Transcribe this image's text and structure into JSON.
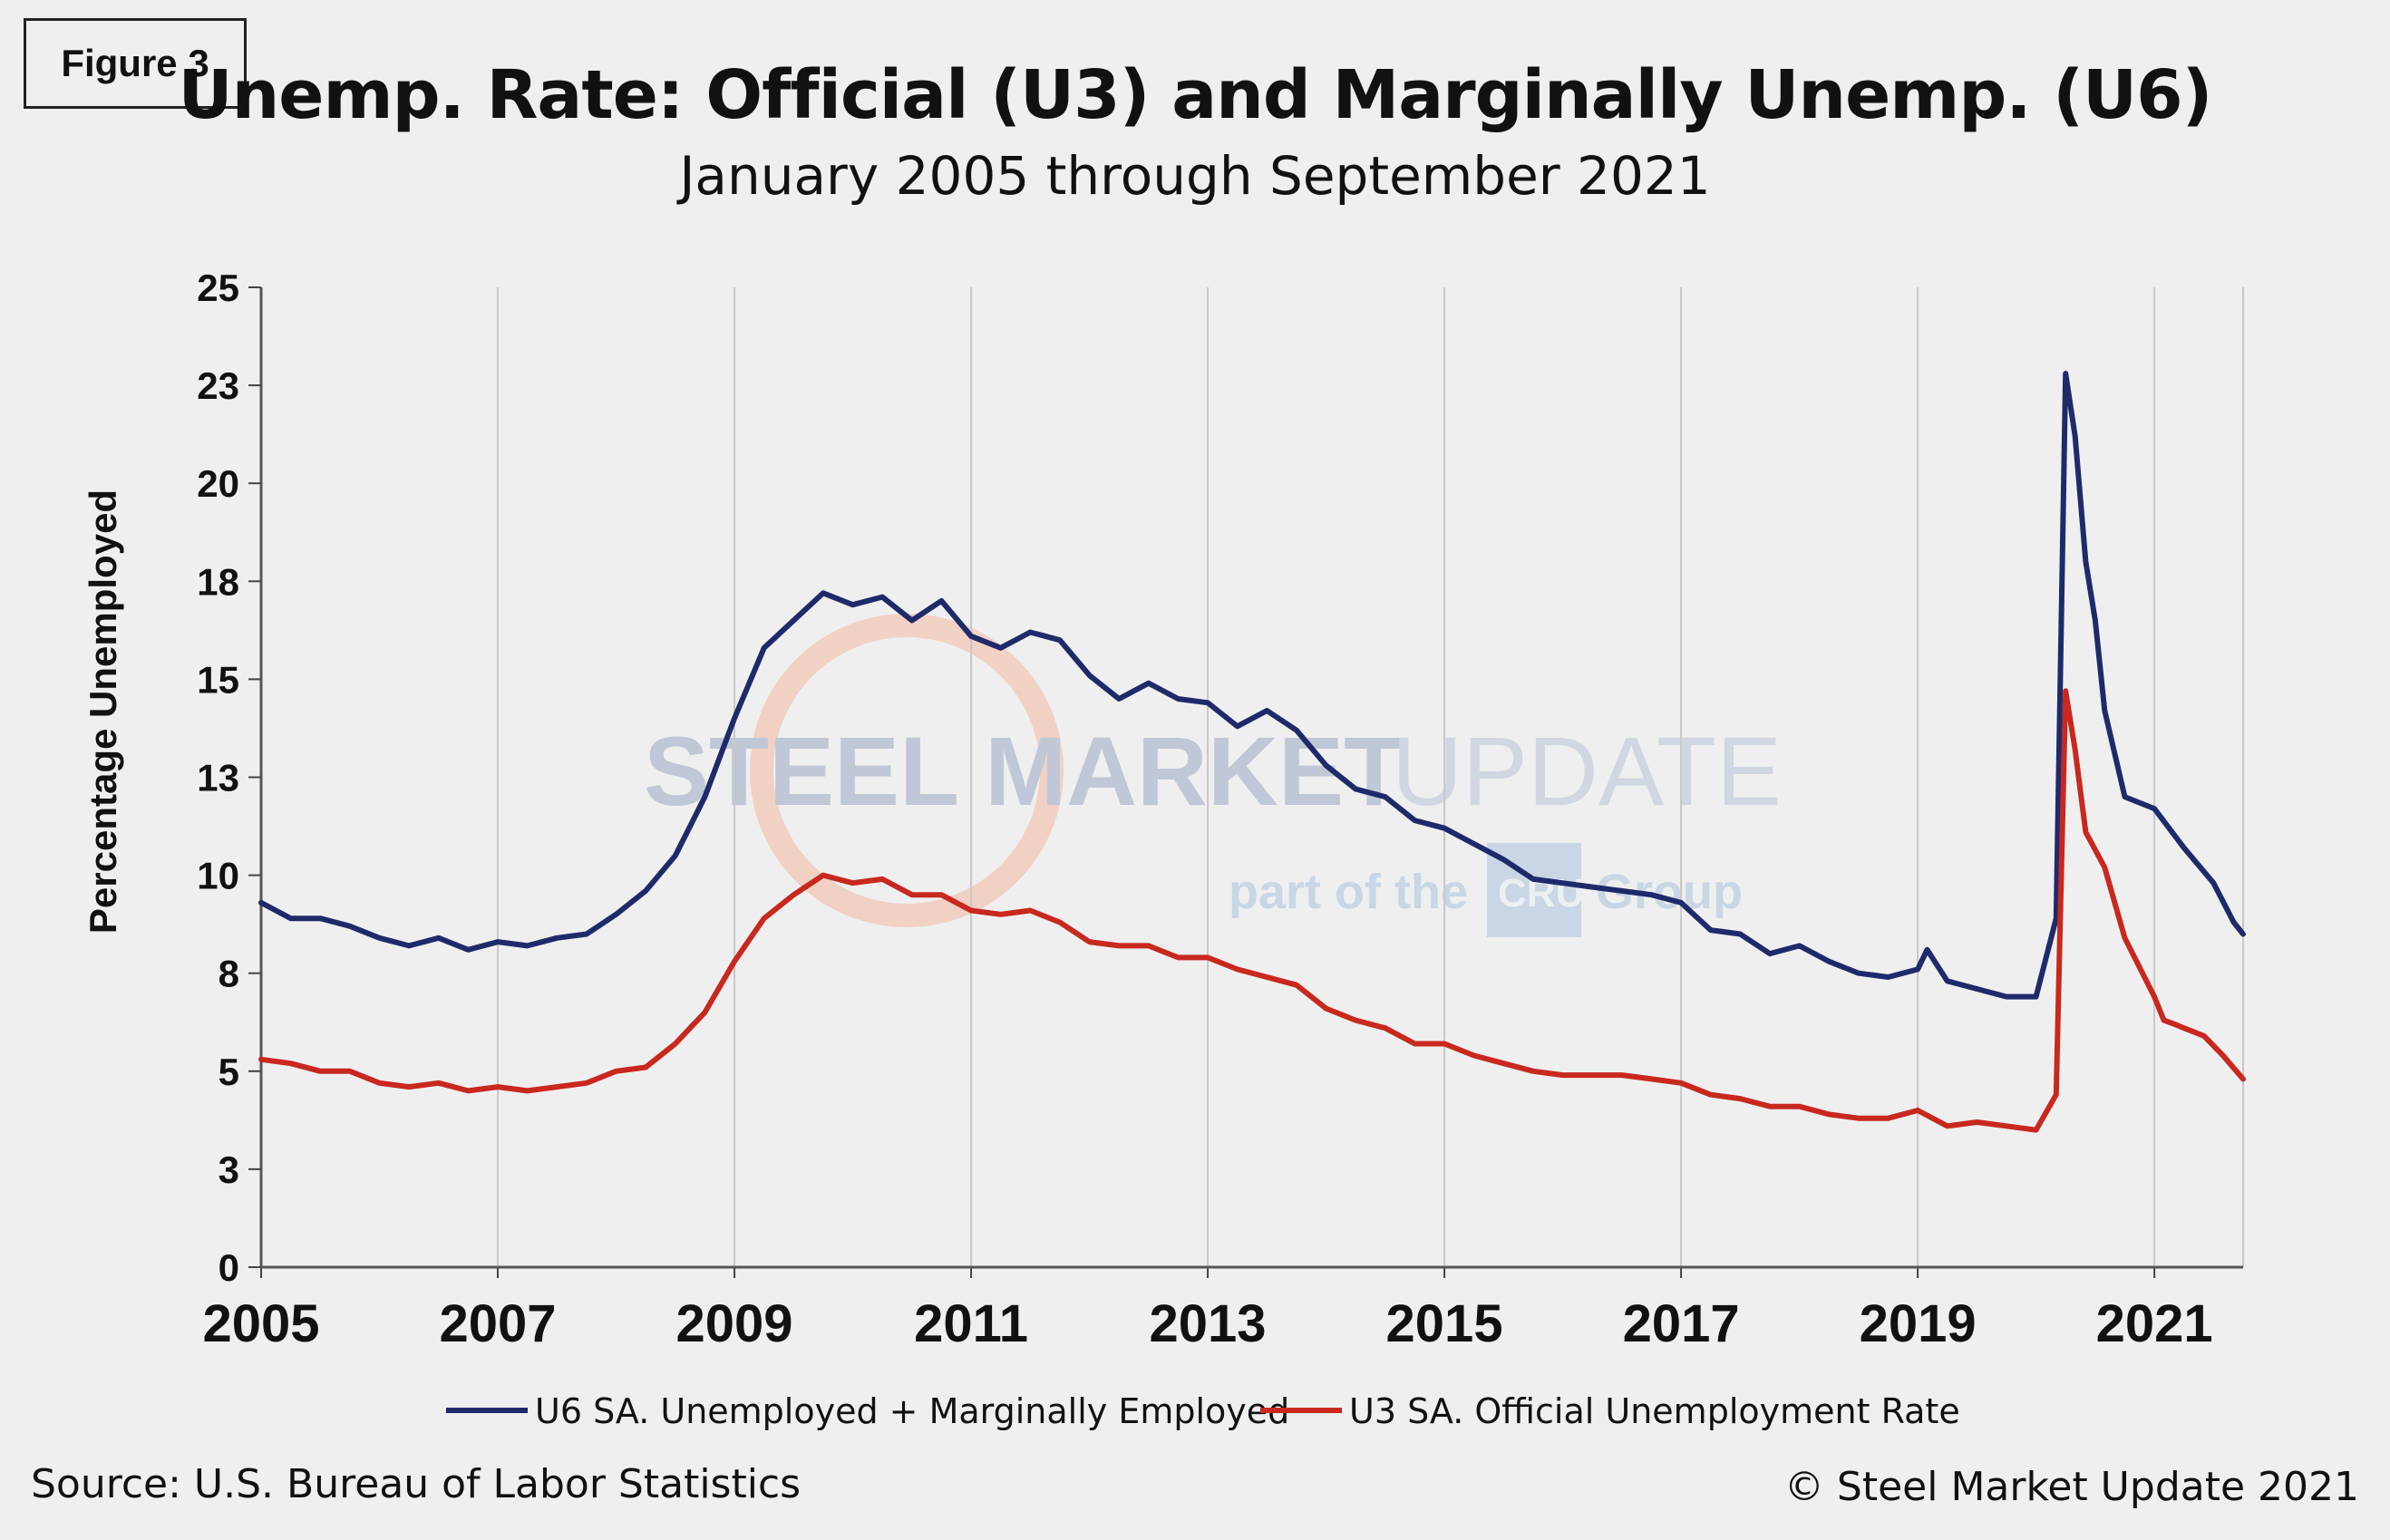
{
  "figure_label": "Figure 3",
  "title": "Unemp. Rate: Official (U3) and Marginally Unemp. (U6)",
  "subtitle": "January 2005 through September 2021",
  "source": "Source: U.S. Bureau  of Labor Statistics",
  "copyright": "© Steel Market Update 2021",
  "watermark": {
    "text_dark": "STEEL MARKET",
    "text_light": "UPDATE",
    "sub_text_left": "part of the",
    "sub_logo": "CRU",
    "sub_text_right": "Group"
  },
  "colors": {
    "u6": "#1f2a6b",
    "u3": "#c8281e",
    "grid": "#c8c8c8",
    "background": "#efefef"
  },
  "chart_data": {
    "type": "line",
    "title": "Unemp. Rate: Official (U3) and Marginally Unemp. (U6)",
    "subtitle": "January 2005 through September 2021",
    "xlabel": "",
    "ylabel": "Percentage Unemployed",
    "xlim": [
      2005.0,
      2021.75
    ],
    "ylim": [
      0,
      25
    ],
    "x_ticks": [
      "2005",
      "2007",
      "2009",
      "2011",
      "2013",
      "2015",
      "2017",
      "2019",
      "2021"
    ],
    "y_ticks": [
      "0",
      "3",
      "5",
      "8",
      "10",
      "13",
      "15",
      "18",
      "20",
      "23",
      "25"
    ],
    "grid": "vertical gridlines only",
    "legend_position": "bottom",
    "series": [
      {
        "name": "U6 SA. Unemployed + Marginally Employed",
        "color": "#1f2a6b",
        "points": [
          [
            2005.0,
            9.3
          ],
          [
            2005.25,
            8.9
          ],
          [
            2005.5,
            8.9
          ],
          [
            2005.75,
            8.7
          ],
          [
            2006.0,
            8.4
          ],
          [
            2006.25,
            8.2
          ],
          [
            2006.5,
            8.4
          ],
          [
            2006.75,
            8.1
          ],
          [
            2007.0,
            8.3
          ],
          [
            2007.25,
            8.2
          ],
          [
            2007.5,
            8.4
          ],
          [
            2007.75,
            8.5
          ],
          [
            2008.0,
            9.0
          ],
          [
            2008.25,
            9.6
          ],
          [
            2008.5,
            10.5
          ],
          [
            2008.75,
            12.0
          ],
          [
            2009.0,
            14.0
          ],
          [
            2009.25,
            15.8
          ],
          [
            2009.5,
            16.5
          ],
          [
            2009.75,
            17.2
          ],
          [
            2010.0,
            16.9
          ],
          [
            2010.25,
            17.1
          ],
          [
            2010.5,
            16.5
          ],
          [
            2010.75,
            17.0
          ],
          [
            2011.0,
            16.1
          ],
          [
            2011.25,
            15.8
          ],
          [
            2011.5,
            16.2
          ],
          [
            2011.75,
            16.0
          ],
          [
            2012.0,
            15.1
          ],
          [
            2012.25,
            14.5
          ],
          [
            2012.5,
            14.9
          ],
          [
            2012.75,
            14.5
          ],
          [
            2013.0,
            14.4
          ],
          [
            2013.25,
            13.8
          ],
          [
            2013.5,
            14.2
          ],
          [
            2013.75,
            13.7
          ],
          [
            2014.0,
            12.8
          ],
          [
            2014.25,
            12.2
          ],
          [
            2014.5,
            12.0
          ],
          [
            2014.75,
            11.4
          ],
          [
            2015.0,
            11.2
          ],
          [
            2015.25,
            10.8
          ],
          [
            2015.5,
            10.4
          ],
          [
            2015.75,
            9.9
          ],
          [
            2016.0,
            9.8
          ],
          [
            2016.25,
            9.7
          ],
          [
            2016.5,
            9.6
          ],
          [
            2016.75,
            9.5
          ],
          [
            2017.0,
            9.3
          ],
          [
            2017.25,
            8.6
          ],
          [
            2017.5,
            8.5
          ],
          [
            2017.75,
            8.0
          ],
          [
            2018.0,
            8.2
          ],
          [
            2018.25,
            7.8
          ],
          [
            2018.5,
            7.5
          ],
          [
            2018.75,
            7.4
          ],
          [
            2019.0,
            7.6
          ],
          [
            2019.08,
            8.1
          ],
          [
            2019.25,
            7.3
          ],
          [
            2019.5,
            7.1
          ],
          [
            2019.75,
            6.9
          ],
          [
            2020.0,
            6.9
          ],
          [
            2020.17,
            8.9
          ],
          [
            2020.25,
            22.8
          ],
          [
            2020.33,
            21.2
          ],
          [
            2020.42,
            18.0
          ],
          [
            2020.5,
            16.5
          ],
          [
            2020.58,
            14.2
          ],
          [
            2020.75,
            12.0
          ],
          [
            2021.0,
            11.7
          ],
          [
            2021.25,
            10.7
          ],
          [
            2021.5,
            9.8
          ],
          [
            2021.67,
            8.8
          ],
          [
            2021.75,
            8.5
          ]
        ]
      },
      {
        "name": "U3 SA. Official Unemployment Rate",
        "color": "#c8281e",
        "points": [
          [
            2005.0,
            5.3
          ],
          [
            2005.25,
            5.2
          ],
          [
            2005.5,
            5.0
          ],
          [
            2005.75,
            5.0
          ],
          [
            2006.0,
            4.7
          ],
          [
            2006.25,
            4.6
          ],
          [
            2006.5,
            4.7
          ],
          [
            2006.75,
            4.5
          ],
          [
            2007.0,
            4.6
          ],
          [
            2007.25,
            4.5
          ],
          [
            2007.5,
            4.6
          ],
          [
            2007.75,
            4.7
          ],
          [
            2008.0,
            5.0
          ],
          [
            2008.25,
            5.1
          ],
          [
            2008.5,
            5.7
          ],
          [
            2008.75,
            6.5
          ],
          [
            2009.0,
            7.8
          ],
          [
            2009.25,
            8.9
          ],
          [
            2009.5,
            9.5
          ],
          [
            2009.75,
            10.0
          ],
          [
            2010.0,
            9.8
          ],
          [
            2010.25,
            9.9
          ],
          [
            2010.5,
            9.5
          ],
          [
            2010.75,
            9.5
          ],
          [
            2011.0,
            9.1
          ],
          [
            2011.25,
            9.0
          ],
          [
            2011.5,
            9.1
          ],
          [
            2011.75,
            8.8
          ],
          [
            2012.0,
            8.3
          ],
          [
            2012.25,
            8.2
          ],
          [
            2012.5,
            8.2
          ],
          [
            2012.75,
            7.9
          ],
          [
            2013.0,
            7.9
          ],
          [
            2013.25,
            7.6
          ],
          [
            2013.5,
            7.4
          ],
          [
            2013.75,
            7.2
          ],
          [
            2014.0,
            6.6
          ],
          [
            2014.25,
            6.3
          ],
          [
            2014.5,
            6.1
          ],
          [
            2014.75,
            5.7
          ],
          [
            2015.0,
            5.7
          ],
          [
            2015.25,
            5.4
          ],
          [
            2015.5,
            5.2
          ],
          [
            2015.75,
            5.0
          ],
          [
            2016.0,
            4.9
          ],
          [
            2016.25,
            4.9
          ],
          [
            2016.5,
            4.9
          ],
          [
            2016.75,
            4.8
          ],
          [
            2017.0,
            4.7
          ],
          [
            2017.25,
            4.4
          ],
          [
            2017.5,
            4.3
          ],
          [
            2017.75,
            4.1
          ],
          [
            2018.0,
            4.1
          ],
          [
            2018.25,
            3.9
          ],
          [
            2018.5,
            3.8
          ],
          [
            2018.75,
            3.8
          ],
          [
            2019.0,
            4.0
          ],
          [
            2019.25,
            3.6
          ],
          [
            2019.5,
            3.7
          ],
          [
            2019.75,
            3.6
          ],
          [
            2020.0,
            3.5
          ],
          [
            2020.17,
            4.4
          ],
          [
            2020.25,
            14.7
          ],
          [
            2020.33,
            13.2
          ],
          [
            2020.42,
            11.1
          ],
          [
            2020.58,
            10.2
          ],
          [
            2020.75,
            8.4
          ],
          [
            2021.0,
            6.9
          ],
          [
            2021.08,
            6.3
          ],
          [
            2021.17,
            6.2
          ],
          [
            2021.25,
            6.1
          ],
          [
            2021.42,
            5.9
          ],
          [
            2021.58,
            5.4
          ],
          [
            2021.75,
            4.8
          ]
        ]
      }
    ]
  }
}
